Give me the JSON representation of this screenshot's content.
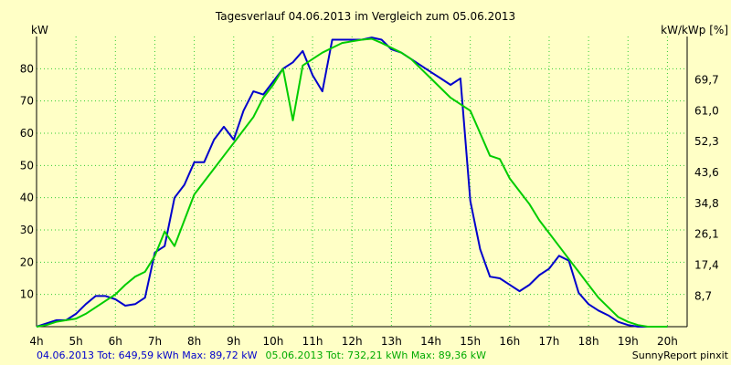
{
  "chart_data": {
    "type": "line",
    "title": "Tagesverlauf 04.06.2013 im Vergleich zum 05.06.2013",
    "ylabel_left": "kW",
    "ylabel_right": "kW/kWp [%]",
    "xlim": [
      4,
      20.5
    ],
    "ylim": [
      0,
      90
    ],
    "x_ticks": [
      4,
      5,
      6,
      7,
      8,
      9,
      10,
      11,
      12,
      13,
      14,
      15,
      16,
      17,
      18,
      19,
      20
    ],
    "x_tick_labels": [
      "4h",
      "5h",
      "6h",
      "7h",
      "8h",
      "9h",
      "10h",
      "11h",
      "12h",
      "13h",
      "14h",
      "15h",
      "16h",
      "17h",
      "18h",
      "19h",
      "20h"
    ],
    "y_ticks_left": [
      10,
      20,
      30,
      40,
      50,
      60,
      70,
      80
    ],
    "y_ticks_right": [
      {
        "value": 9.5,
        "label": "8,7"
      },
      {
        "value": 19.1,
        "label": "17,4"
      },
      {
        "value": 28.7,
        "label": "26,1"
      },
      {
        "value": 38.2,
        "label": "34,8"
      },
      {
        "value": 47.8,
        "label": "43,6"
      },
      {
        "value": 57.4,
        "label": "52,3"
      },
      {
        "value": 66.9,
        "label": "61,0"
      },
      {
        "value": 76.5,
        "label": "69,7"
      }
    ],
    "grid": true,
    "series": [
      {
        "color": "#0000cc",
        "x": [
          4.0,
          4.25,
          4.5,
          4.75,
          5.0,
          5.25,
          5.5,
          5.75,
          6.0,
          6.25,
          6.5,
          6.75,
          7.0,
          7.25,
          7.5,
          7.75,
          8.0,
          8.25,
          8.5,
          8.75,
          9.0,
          9.25,
          9.5,
          9.75,
          10.0,
          10.25,
          10.5,
          10.75,
          11.0,
          11.25,
          11.5,
          11.75,
          12.0,
          12.25,
          12.5,
          12.75,
          13.0,
          13.25,
          13.5,
          13.75,
          14.0,
          14.25,
          14.5,
          14.75,
          15.0,
          15.25,
          15.5,
          15.75,
          16.0,
          16.25,
          16.5,
          16.75,
          17.0,
          17.25,
          17.5,
          17.75,
          18.0,
          18.25,
          18.5,
          18.75,
          19.0,
          19.25,
          19.5,
          19.75,
          20.0
        ],
        "values": [
          0,
          1,
          2,
          2,
          4,
          7,
          9.5,
          9.5,
          8.5,
          6.5,
          7,
          9,
          23,
          25,
          40,
          44,
          51,
          51,
          58,
          62,
          58,
          67,
          73,
          72,
          76,
          80,
          82,
          85.5,
          78,
          73,
          89,
          89,
          89,
          89,
          89.7,
          89,
          86,
          85,
          83,
          81,
          79,
          77,
          75,
          77,
          39,
          24,
          15.5,
          15,
          13,
          11,
          13,
          16,
          18,
          22,
          20.5,
          10.5,
          7,
          5,
          3.5,
          1.5,
          0.5,
          0,
          0,
          0,
          0
        ]
      },
      {
        "color": "#00cc00",
        "x": [
          4.0,
          4.25,
          4.5,
          4.75,
          5.0,
          5.25,
          5.5,
          5.75,
          6.0,
          6.25,
          6.5,
          6.75,
          7.0,
          7.25,
          7.5,
          7.75,
          8.0,
          8.25,
          8.5,
          8.75,
          9.0,
          9.25,
          9.5,
          9.75,
          10.0,
          10.25,
          10.5,
          10.75,
          11.0,
          11.25,
          11.5,
          11.75,
          12.0,
          12.25,
          12.5,
          12.75,
          13.0,
          13.25,
          13.5,
          13.75,
          14.0,
          14.25,
          14.5,
          14.75,
          15.0,
          15.25,
          15.5,
          15.75,
          16.0,
          16.25,
          16.5,
          16.75,
          17.0,
          17.25,
          17.5,
          17.75,
          18.0,
          18.25,
          18.5,
          18.75,
          19.0,
          19.25,
          19.5,
          19.75,
          20.0
        ],
        "values": [
          0,
          0.5,
          1.5,
          2,
          2.5,
          4,
          6,
          8,
          10,
          13,
          15.5,
          17,
          22,
          29.5,
          25,
          33,
          41,
          45,
          49,
          53,
          57,
          61,
          65,
          71,
          75,
          80,
          64,
          81,
          83,
          85,
          86.5,
          88,
          88.5,
          89,
          89.3,
          88,
          86.5,
          85,
          83,
          80,
          77,
          74,
          71,
          69,
          67,
          60,
          53,
          52,
          46,
          42,
          38,
          33,
          29,
          25,
          21,
          17,
          13,
          9,
          6,
          3,
          1.5,
          0.5,
          0,
          0,
          0
        ]
      }
    ],
    "footer": {
      "blue_text": "04.06.2013 Tot: 649,59 kWh Max: 89,72 kW",
      "green_text": "05.06.2013 Tot: 732,21 kWh Max: 89,36 kW",
      "credit": "SunnyReport pinxit"
    }
  }
}
